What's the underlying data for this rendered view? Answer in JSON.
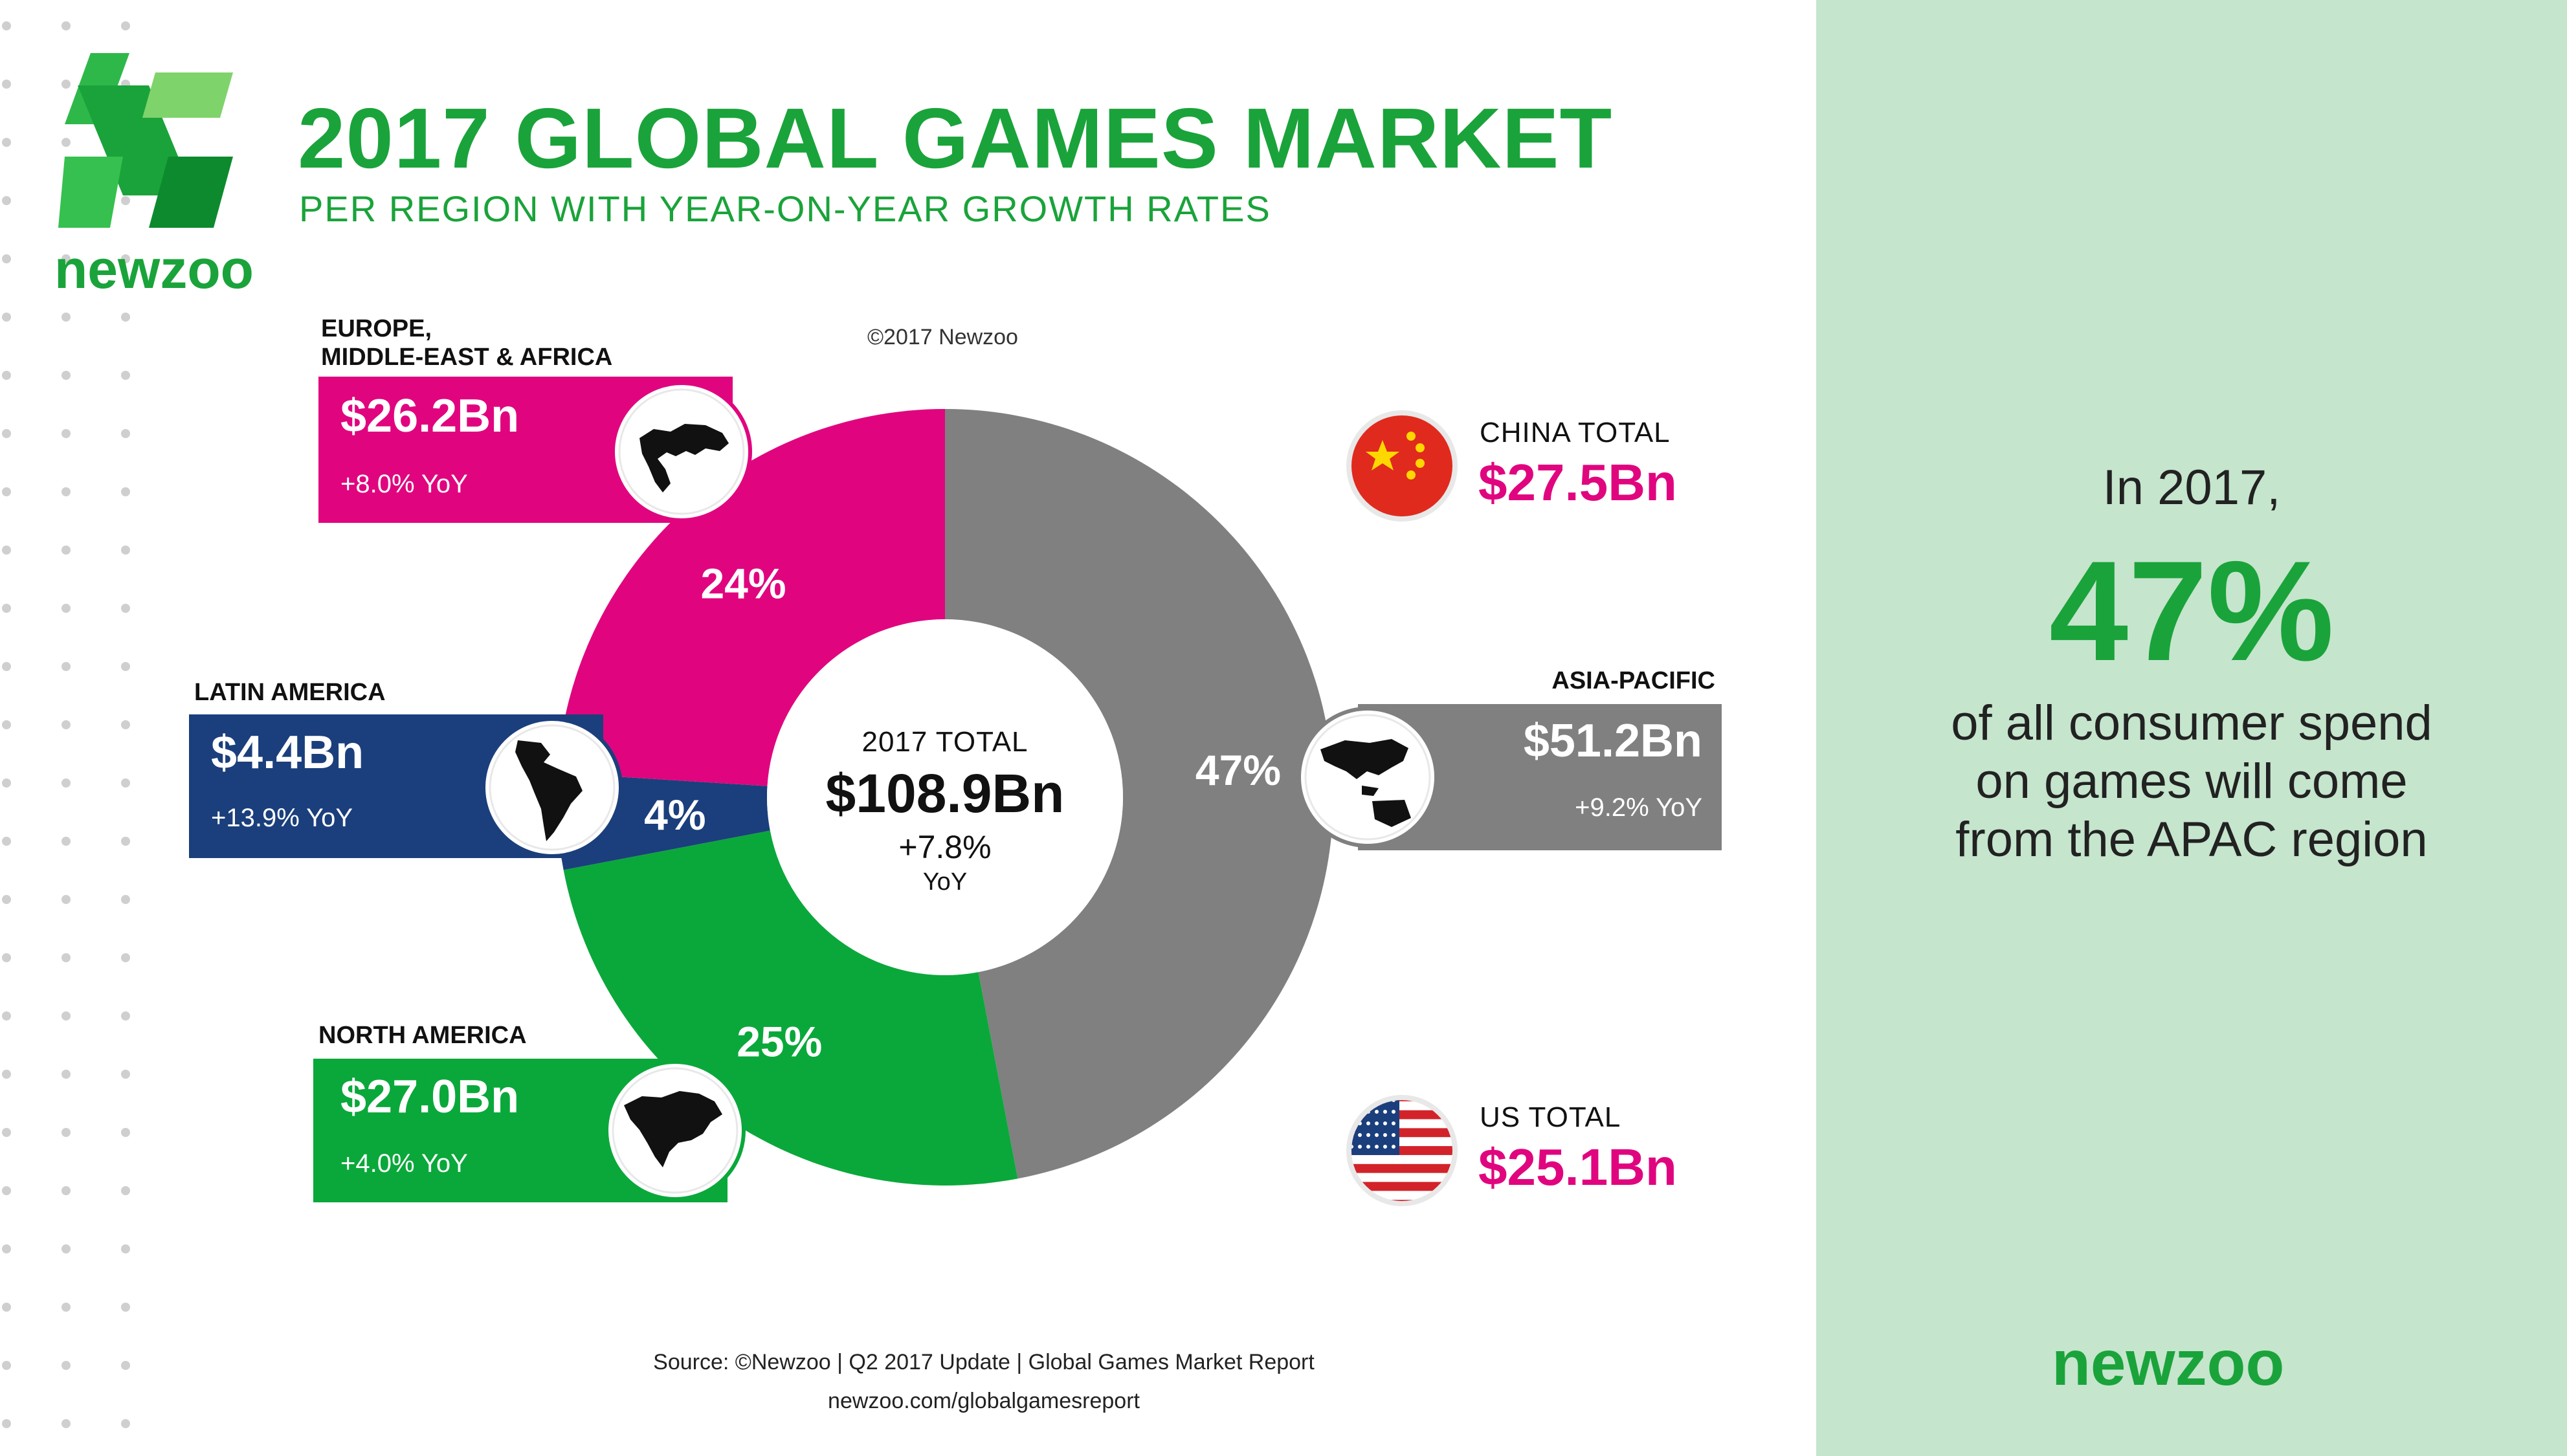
{
  "header": {
    "title": "2017 GLOBAL GAMES MARKET",
    "subtitle": "PER REGION WITH YEAR-ON-YEAR GROWTH RATES",
    "copyright": "©2017 Newzoo",
    "logo_text": "newzoo"
  },
  "colors": {
    "brand_green": "#1aa33a",
    "magenta": "#e0057f",
    "apac_gray": "#808080",
    "latam_blue": "#1b3f7c",
    "na_green": "#0aa83a",
    "panel_green": "#c5e5cd"
  },
  "chart_data": {
    "type": "pie",
    "donut": true,
    "center": {
      "label": "2017 TOTAL",
      "value": "$108.9Bn",
      "growth": "+7.8%",
      "growth_unit": "YoY"
    },
    "segments": [
      {
        "key": "apac",
        "region": "ASIA-PACIFIC",
        "share": 47,
        "share_label": "47%",
        "value": 51.2,
        "value_label": "$51.2Bn",
        "yoy": "+9.2% YoY",
        "color": "#808080",
        "icon": "asia-pacific-map-icon"
      },
      {
        "key": "na",
        "region": "NORTH AMERICA",
        "share": 25,
        "share_label": "25%",
        "value": 27.0,
        "value_label": "$27.0Bn",
        "yoy": "+4.0% YoY",
        "color": "#0aa83a",
        "icon": "north-america-map-icon"
      },
      {
        "key": "latam",
        "region": "LATIN AMERICA",
        "share": 4,
        "share_label": "4%",
        "value": 4.4,
        "value_label": "$4.4Bn",
        "yoy": "+13.9% YoY",
        "color": "#1b3f7c",
        "icon": "latin-america-map-icon"
      },
      {
        "key": "emea",
        "region_line1": "EUROPE,",
        "region_line2": "MIDDLE-EAST & AFRICA",
        "share": 24,
        "share_label": "24%",
        "value": 26.2,
        "value_label": "$26.2Bn",
        "yoy": "+8.0% YoY",
        "color": "#e0057f",
        "icon": "europe-africa-map-icon"
      }
    ],
    "country_totals": [
      {
        "key": "china",
        "label": "CHINA TOTAL",
        "value": 27.5,
        "value_label": "$27.5Bn",
        "icon": "china-flag-icon"
      },
      {
        "key": "us",
        "label": "US TOTAL",
        "value": 25.1,
        "value_label": "$25.1Bn",
        "icon": "us-flag-icon"
      }
    ]
  },
  "sidebar": {
    "line1": "In 2017,",
    "highlight": "47%",
    "line2": "of all consumer spend",
    "line3": "on games will come",
    "line4": "from the APAC region",
    "brand": "newzoo"
  },
  "footer": {
    "source": "Source: ©Newzoo | Q2 2017 Update | Global Games Market Report",
    "url": "newzoo.com/globalgamesreport"
  }
}
